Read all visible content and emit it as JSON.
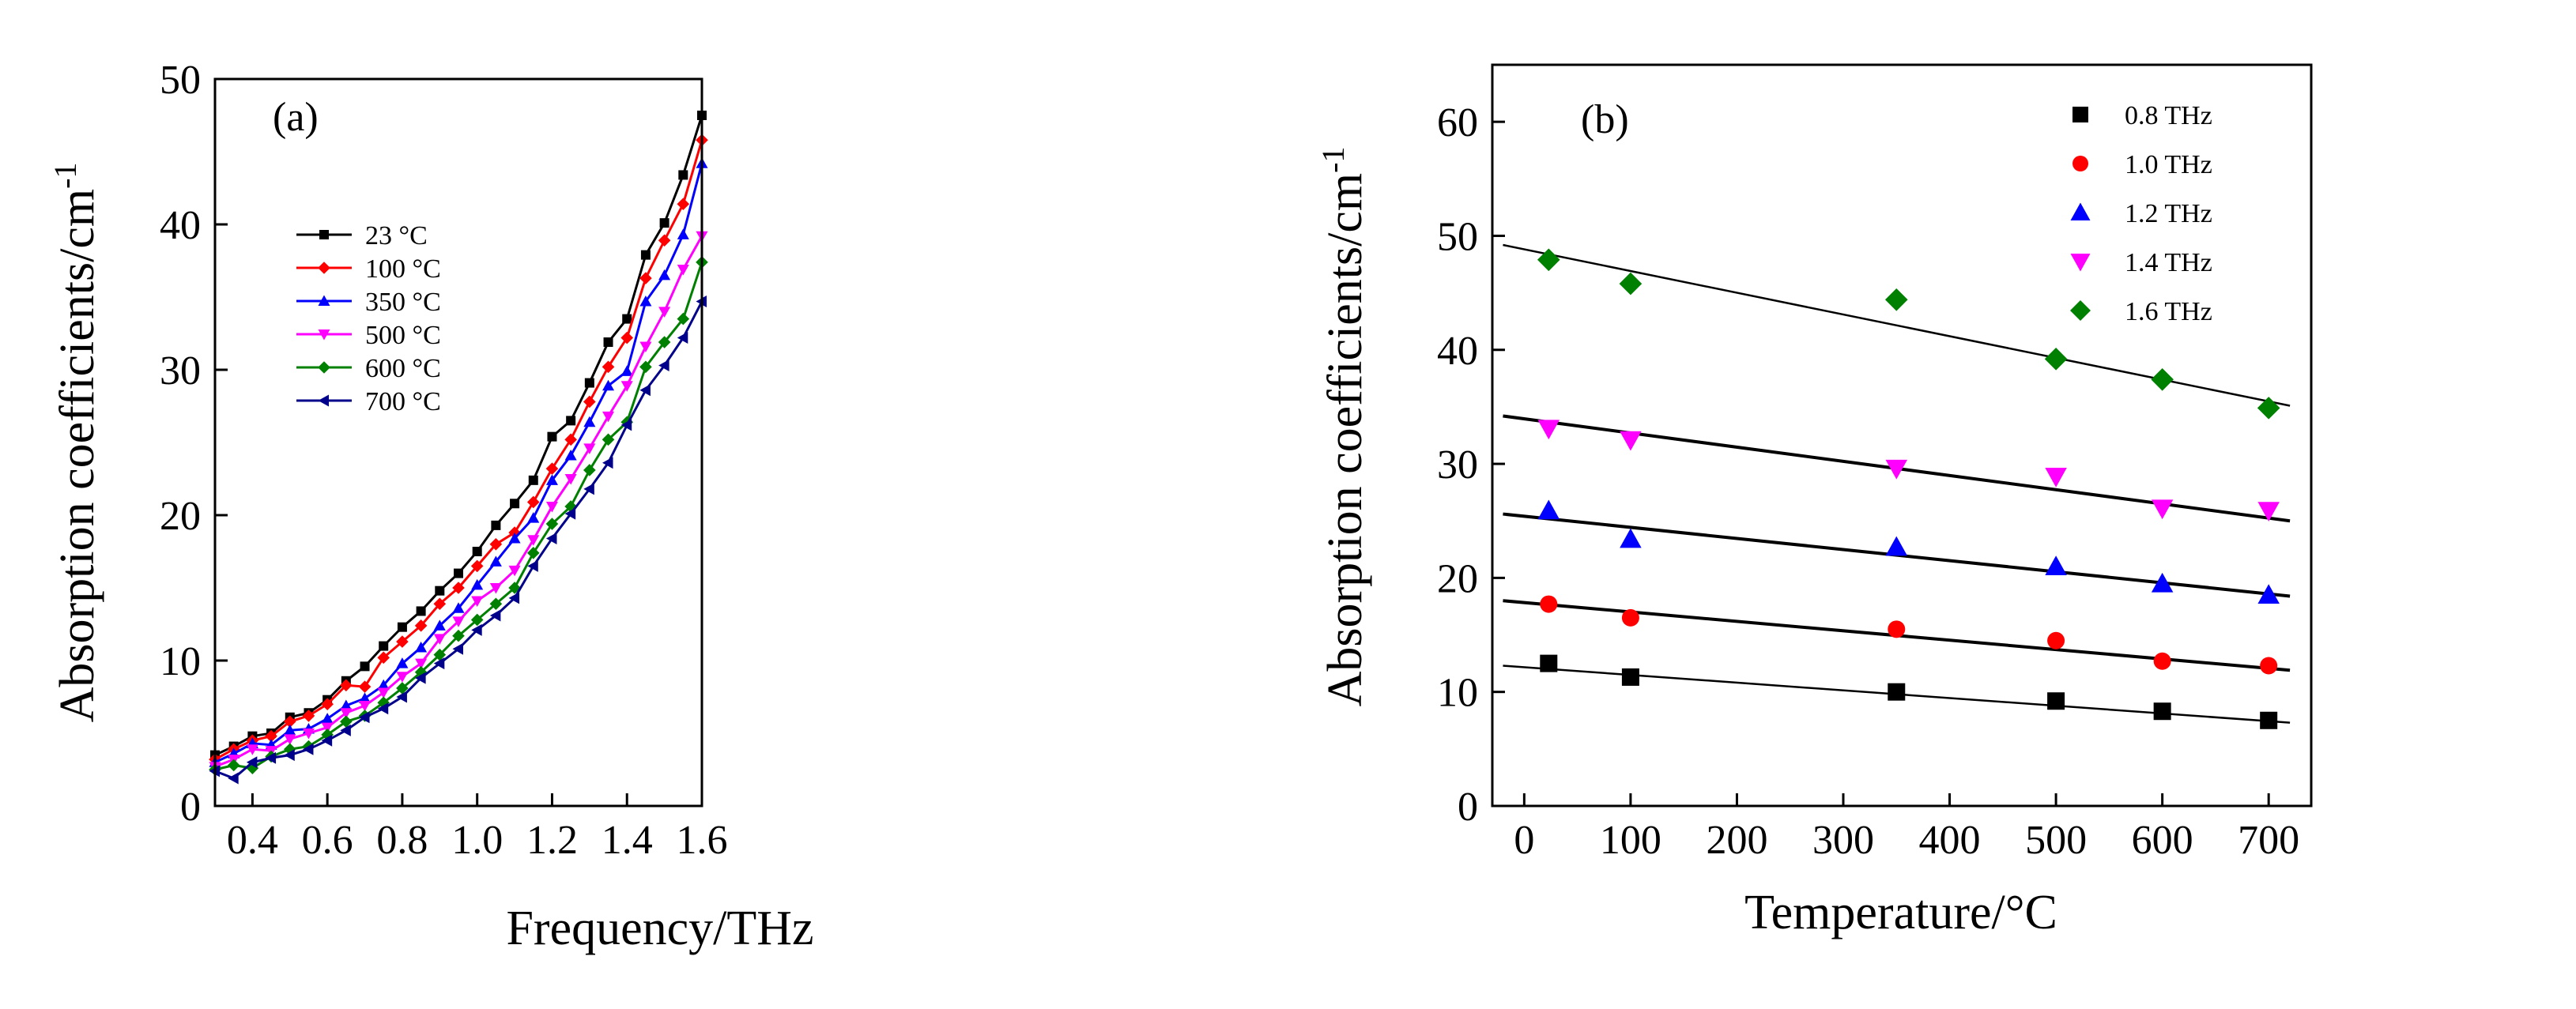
{
  "chart_data": [
    {
      "type": "line",
      "panel_label": "(a)",
      "xlabel": "Frequency/THz",
      "ylabel": "Absorption coefficients/cm",
      "ylabel_superscript": "-1",
      "xlim": [
        0.3,
        1.6
      ],
      "ylim": [
        0,
        50
      ],
      "xticks": [
        "0.4",
        "0.6",
        "0.8",
        "1.0",
        "1.2",
        "1.4",
        "1.6"
      ],
      "yticks": [
        "0",
        "10",
        "20",
        "30",
        "40",
        "50"
      ],
      "legend_position": "top-left",
      "x": [
        0.3,
        0.35,
        0.4,
        0.45,
        0.5,
        0.55,
        0.6,
        0.65,
        0.7,
        0.75,
        0.8,
        0.85,
        0.9,
        0.95,
        1.0,
        1.05,
        1.1,
        1.15,
        1.2,
        1.25,
        1.3,
        1.35,
        1.4,
        1.45,
        1.5,
        1.55,
        1.6
      ],
      "series": [
        {
          "name": "23 °C",
          "color": "#000000",
          "marker": "square",
          "values": [
            3.5,
            4.1,
            4.8,
            5.0,
            6.1,
            6.4,
            7.3,
            8.6,
            9.6,
            11.0,
            12.3,
            13.4,
            14.8,
            16.0,
            17.5,
            19.3,
            20.8,
            22.4,
            25.4,
            26.5,
            29.1,
            31.9,
            33.5,
            37.9,
            40.1,
            43.4,
            47.5
          ]
        },
        {
          "name": "100 °C",
          "color": "#ff0000",
          "marker": "diamond",
          "values": [
            3.2,
            3.9,
            4.5,
            4.8,
            5.8,
            6.2,
            7.0,
            8.3,
            8.2,
            10.2,
            11.3,
            12.4,
            13.9,
            15.0,
            16.5,
            18.0,
            18.8,
            20.9,
            23.2,
            25.2,
            27.8,
            30.2,
            32.2,
            36.3,
            38.9,
            41.4,
            45.8
          ]
        },
        {
          "name": "350 °C",
          "color": "#0000ff",
          "marker": "triangle-up",
          "values": [
            3.0,
            3.6,
            4.3,
            4.2,
            5.2,
            5.3,
            6.0,
            6.9,
            7.4,
            8.3,
            9.8,
            10.9,
            12.4,
            13.6,
            15.2,
            16.8,
            18.4,
            19.8,
            22.4,
            24.1,
            26.4,
            28.9,
            29.9,
            34.7,
            36.5,
            39.3,
            44.2
          ]
        },
        {
          "name": "500 °C",
          "color": "#ff00ff",
          "marker": "triangle-down",
          "values": [
            2.7,
            3.2,
            3.9,
            3.8,
            4.6,
            5.0,
            5.4,
            6.4,
            6.9,
            7.8,
            8.9,
            9.8,
            11.5,
            12.7,
            14.1,
            15.0,
            16.2,
            18.3,
            20.6,
            22.5,
            24.6,
            26.8,
            28.9,
            31.6,
            34.0,
            36.9,
            39.2
          ]
        },
        {
          "name": "600 °C",
          "color": "#008000",
          "marker": "diamond",
          "values": [
            2.5,
            2.8,
            2.6,
            3.4,
            3.9,
            4.1,
            4.9,
            5.8,
            6.2,
            7.1,
            8.1,
            9.2,
            10.4,
            11.7,
            12.8,
            13.9,
            15.0,
            17.4,
            19.4,
            20.6,
            23.1,
            25.2,
            26.4,
            30.2,
            31.9,
            33.5,
            37.4
          ]
        },
        {
          "name": "700 °C",
          "color": "#00008b",
          "marker": "triangle-left",
          "values": [
            2.4,
            1.9,
            3.0,
            3.3,
            3.5,
            3.9,
            4.5,
            5.2,
            6.1,
            6.7,
            7.5,
            8.8,
            9.8,
            10.8,
            12.1,
            13.1,
            14.3,
            16.5,
            18.4,
            20.1,
            21.8,
            23.6,
            26.2,
            28.6,
            30.3,
            32.2,
            34.7
          ]
        }
      ]
    },
    {
      "type": "scatter",
      "panel_label": "(b)",
      "xlabel": "Temperature/°C",
      "ylabel": "Absorption coefficients/cm",
      "ylabel_superscript": "-1",
      "xlim": [
        -30,
        740
      ],
      "ylim": [
        0,
        65
      ],
      "xticks": [
        "0",
        "100",
        "200",
        "300",
        "400",
        "500",
        "600",
        "700"
      ],
      "yticks": [
        "0",
        "10",
        "20",
        "30",
        "40",
        "50",
        "60"
      ],
      "legend_position": "top-right",
      "x": [
        23,
        100,
        350,
        500,
        600,
        700
      ],
      "fit_x_range": [
        -20,
        720
      ],
      "series": [
        {
          "name": "0.8 THz",
          "color": "#000000",
          "marker": "square",
          "values": [
            12.5,
            11.3,
            10.0,
            9.2,
            8.3,
            7.5
          ],
          "fit": [
            12.3,
            7.3
          ]
        },
        {
          "name": "1.0 THz",
          "color": "#ff0000",
          "marker": "circle",
          "values": [
            17.7,
            16.5,
            15.5,
            14.5,
            12.7,
            12.3
          ],
          "fit": [
            18.0,
            11.9
          ]
        },
        {
          "name": "1.2 THz",
          "color": "#0000ff",
          "marker": "triangle-up",
          "values": [
            25.9,
            23.4,
            22.7,
            21.0,
            19.5,
            18.5
          ],
          "fit": [
            25.6,
            18.4
          ]
        },
        {
          "name": "1.4 THz",
          "color": "#ff00ff",
          "marker": "triangle-down",
          "values": [
            33.1,
            32.1,
            29.6,
            28.9,
            26.1,
            25.9
          ],
          "fit": [
            34.2,
            25.0
          ]
        },
        {
          "name": "1.6 THz",
          "color": "#008000",
          "marker": "diamond",
          "values": [
            47.9,
            45.8,
            44.4,
            39.2,
            37.4,
            34.9
          ],
          "fit": [
            49.2,
            35.1
          ]
        }
      ]
    }
  ]
}
